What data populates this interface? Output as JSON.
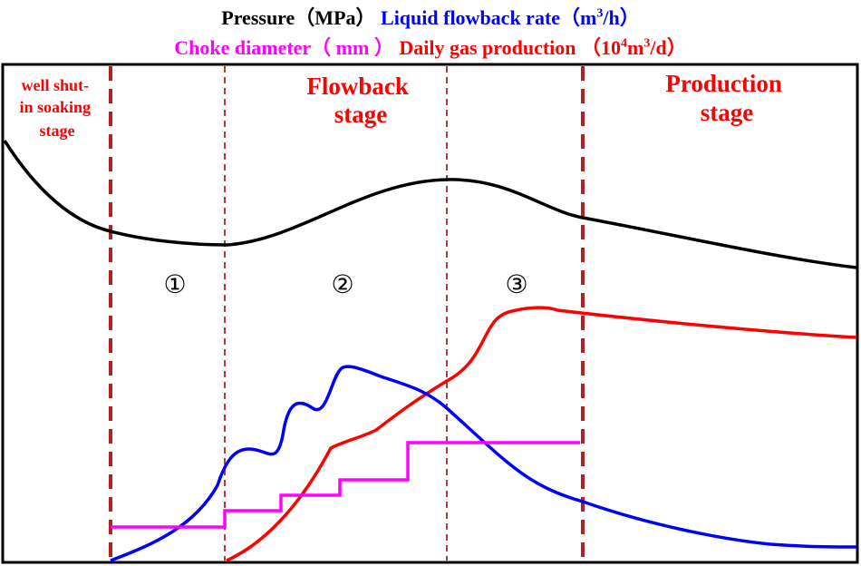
{
  "legend": {
    "pressure": "Pressure（MPa）",
    "liquid_rate_prefix": "Liquid flowback rate（m",
    "liquid_rate_sup": "3",
    "liquid_rate_suffix": "/h）",
    "choke": "Choke diameter（ mm ）",
    "gas_prefix": "Daily gas production （10",
    "gas_sup1": "4",
    "gas_mid": "m",
    "gas_sup2": "3",
    "gas_suffix": "/d）"
  },
  "stages": {
    "soaking": [
      "well shut-",
      "in soaking",
      "stage"
    ],
    "flowback": [
      "Flowback",
      "stage"
    ],
    "production": [
      "Production",
      "stage"
    ]
  },
  "sub_stages": [
    "①",
    "②",
    "③"
  ],
  "colors": {
    "pressure": "#000000",
    "liquid": "#0000ff",
    "choke": "#ff00ff",
    "gas": "#ff0000",
    "divider": "#b22222"
  }
}
